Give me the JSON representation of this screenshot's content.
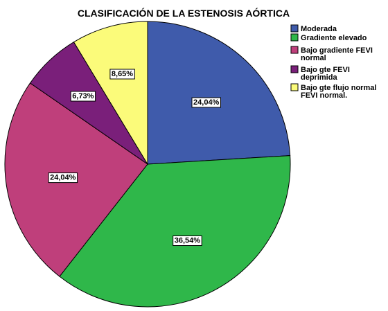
{
  "chart_data": {
    "type": "pie",
    "title": "CLASIFICACIÓN DE LA ESTENOSIS AÓRTICA",
    "categories": [
      "Moderada",
      "Gradiente elevado",
      "Bajo gradiente FEVI normal",
      "Bajo gte FEVI deprimida",
      "Bajo gte flujo normal FEVI normal."
    ],
    "legend_lines": [
      [
        "Moderada"
      ],
      [
        "Gradiente elevado"
      ],
      [
        "Bajo gradiente FEVI",
        "normal"
      ],
      [
        "Bajo gte FEVI",
        "deprimida"
      ],
      [
        "Bajo gte flujo normal",
        "FEVI normal."
      ]
    ],
    "values": [
      24.04,
      36.54,
      24.04,
      6.73,
      8.65
    ],
    "data_labels": [
      "24,04%",
      "36,54%",
      "24,04%",
      "6,73%",
      "8,65%"
    ],
    "colors": [
      "#3f5bab",
      "#2fb74a",
      "#bf3f7b",
      "#7a1f7a",
      "#fbfb7a"
    ],
    "start_angle": "12 o'clock",
    "direction": "clockwise",
    "legend_position": "top-right"
  }
}
